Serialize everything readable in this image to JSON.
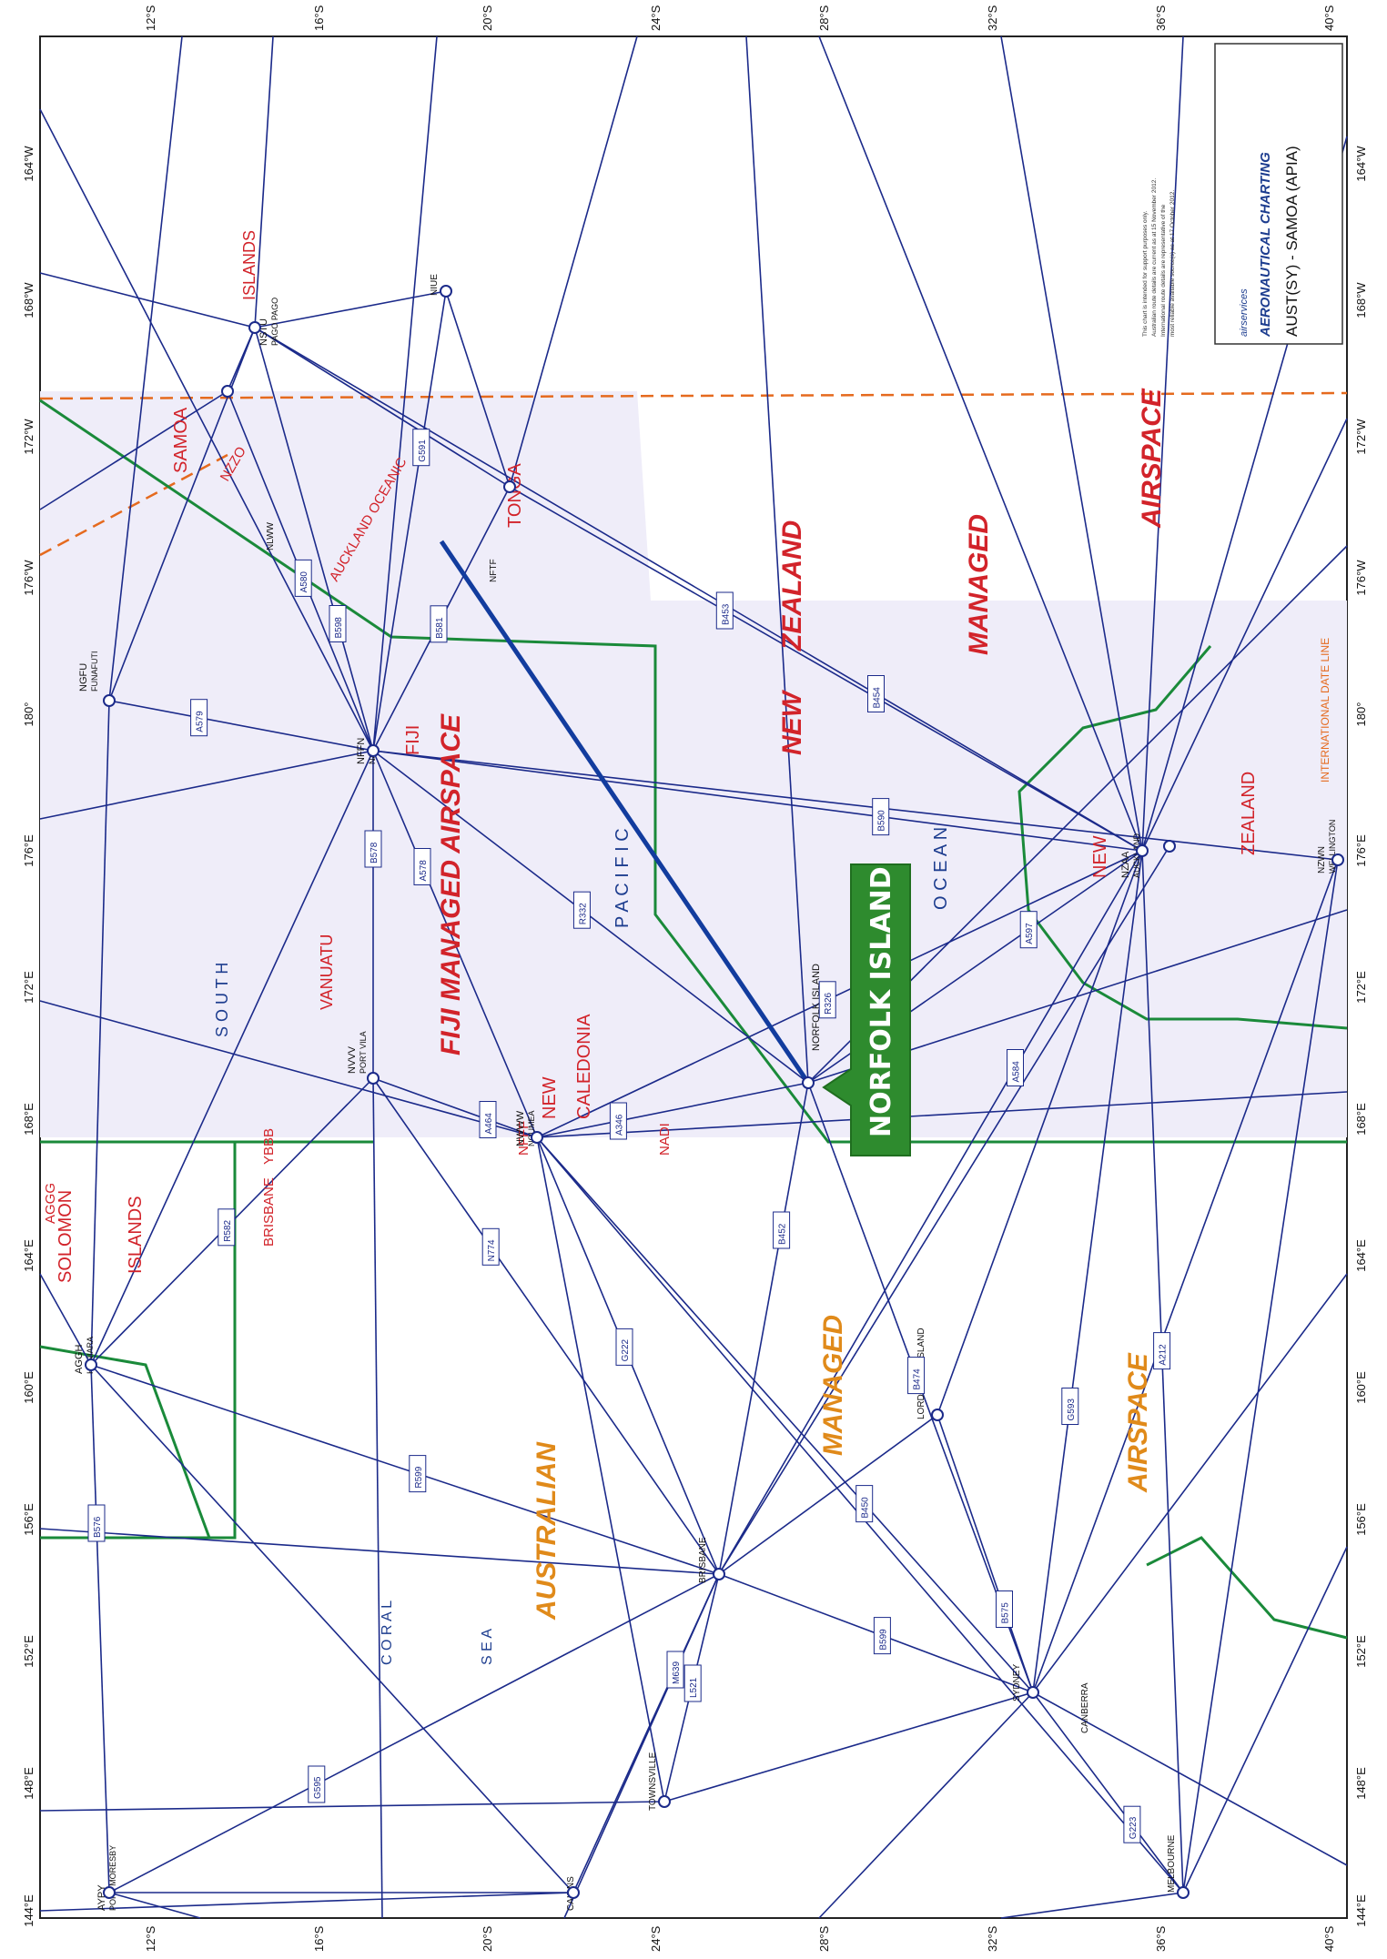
{
  "colors": {
    "route": "#1b2a8a",
    "fir": "#1a8a3a",
    "airspace_tint": "#ece9f7",
    "dateline": "#e56a1e",
    "title_blue": "#1d3d8f",
    "red": "#d2232a",
    "orange": "#e08a1a",
    "callout_green": "#2e8b2e",
    "highlight": "#123c9e"
  },
  "title_block": {
    "logo": "airservices",
    "heading": "AERONAUTICAL CHARTING",
    "subtitle": "AUST(SY) - SAMOA (APIA)",
    "notes": [
      "This chart is intended for support purposes only.",
      "Australian route details are current as at 15 November 2012.",
      "International route details are representative of the",
      "most reliable available source(s) as at 17 October 2012."
    ]
  },
  "lat_labels": [
    "12°S",
    "16°S",
    "20°S",
    "24°S",
    "28°S",
    "32°S",
    "36°S",
    "40°S"
  ],
  "lon_labels": [
    "144°E",
    "148°E",
    "152°E",
    "156°E",
    "160°E",
    "164°E",
    "168°E",
    "172°E",
    "176°E",
    "180°",
    "176°W",
    "172°W",
    "168°W",
    "164°W"
  ],
  "regions": {
    "fiji": "FIJI MANAGED AIRSPACE",
    "nz1": "NEW",
    "nz2": "ZEALAND",
    "nz_managed": "MANAGED",
    "nz_airspace": "AIRSPACE",
    "aus": "AUSTRALIAN",
    "aus_managed": "MANAGED",
    "aus_airspace": "AIRSPACE",
    "vanuatu": "VANUATU",
    "new_caledonia": "NEW",
    "caledonia": "CALEDONIA",
    "solomon": "SOLOMON",
    "islands": "ISLANDS",
    "samoa": "SAMOA",
    "tonga": "TONGA",
    "fiji_short": "FIJI",
    "zealand": "ZEALAND",
    "new2": "NEW",
    "dateline": "INTERNATIONAL DATE LINE",
    "brisbane": "BRISBANE",
    "ybbb": "YBBB",
    "nadi": "NADI",
    "nfff": "NFFF",
    "auckland_oceanic": "AUCKLAND OCEANIC",
    "nzzo": "NZZO",
    "aggg": "AGGG",
    "coral": "C O R A L",
    "sea": "S E A",
    "south": "S O U T H",
    "pacific": "P A C I F I C",
    "ocean": "O C E A N"
  },
  "stations": {
    "norfolk": "NORFOLK ISLAND",
    "nffn": "NFFN",
    "nadi": "NADI",
    "nwww": "NWWW",
    "noumea": "NOUMEA",
    "nzaa": "NZAA",
    "auckland": "AUCKLAND",
    "nstu": "NSTU",
    "pago": "PAGO PAGO",
    "ngfu": "NGFU",
    "funafuti": "FUNAFUTI",
    "nvvv": "NVVV",
    "portvila": "PORT VILA",
    "agsh": "AGGH",
    "honiara": "HONIARA",
    "brisbane_city": "BRISBANE",
    "sydney": "SYDNEY",
    "melbourne": "MELBOURNE",
    "lord_howe": "LORD HOWE ISLAND",
    "niue": "NIUE",
    "nftf": "NFTF",
    "nlww": "NLWW",
    "nzwn": "NZWN",
    "wellington": "WELLINGTON",
    "townsville": "TOWNSVILLE",
    "cairns": "CAIRNS",
    "canberra": "CANBERRA",
    "ayp": "AYPY",
    "port_moresby": "PORT MORESBY"
  },
  "callout": "NORFOLK ISLAND",
  "route_labels": [
    "A578",
    "R332",
    "B590",
    "B598",
    "A580",
    "A579",
    "B578",
    "B581",
    "G591",
    "A346",
    "G222",
    "B450",
    "A464",
    "R326",
    "A597",
    "B452",
    "B474",
    "G593",
    "A584",
    "A212",
    "B453",
    "B454",
    "B599",
    "G223",
    "B575",
    "R599",
    "N774",
    "M639",
    "L521",
    "G595",
    "B576",
    "R582"
  ]
}
